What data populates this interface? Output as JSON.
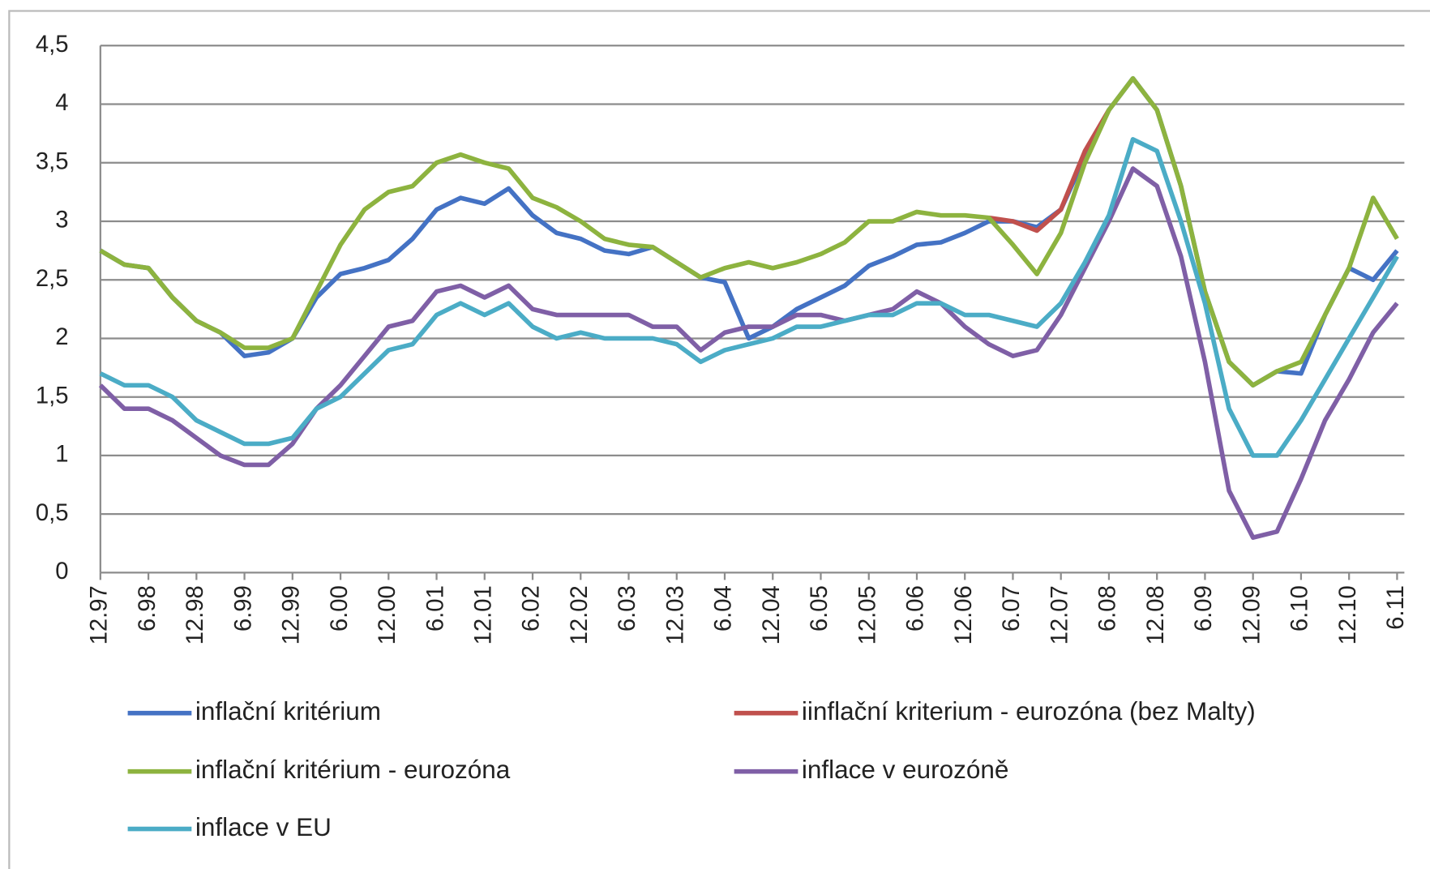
{
  "chart_data": {
    "type": "line",
    "categories": [
      "12.97",
      null,
      "6.98",
      null,
      "12.98",
      null,
      "6.99",
      null,
      "12.99",
      null,
      "6.00",
      null,
      "12.00",
      null,
      "6.01",
      null,
      "12.01",
      null,
      "6.02",
      null,
      "12.02",
      null,
      "6.03",
      null,
      "12.03",
      null,
      "6.04",
      null,
      "12.04",
      null,
      "6.05",
      null,
      "12.05",
      null,
      "6.06",
      null,
      "12.06",
      null,
      "6.07",
      null,
      "12.07",
      null,
      "6.08",
      null,
      "12.08",
      null,
      "6.09",
      null,
      "12.09",
      null,
      "6.10",
      null,
      "12.10",
      null,
      "6.11"
    ],
    "ylim": [
      0,
      4.5
    ],
    "yticks": [
      0,
      {
        "value": 0.5,
        "label": "0,5"
      },
      1,
      {
        "value": 1.5,
        "label": "1,5"
      },
      2,
      {
        "value": 2.5,
        "label": "2,5"
      },
      3,
      {
        "value": 3.5,
        "label": "3,5"
      },
      4,
      {
        "value": 4.5,
        "label": "4,5"
      }
    ],
    "grid": true,
    "series": [
      {
        "name": "inflační kritérium",
        "color": "#4472c4",
        "values": [
          2.75,
          2.63,
          2.6,
          2.35,
          2.15,
          2.05,
          1.85,
          1.88,
          2.0,
          2.35,
          2.55,
          2.6,
          2.67,
          2.85,
          3.1,
          3.2,
          3.15,
          3.28,
          3.05,
          2.9,
          2.85,
          2.75,
          2.72,
          2.78,
          2.65,
          2.52,
          2.48,
          2.0,
          2.1,
          2.25,
          2.35,
          2.45,
          2.62,
          2.7,
          2.8,
          2.82,
          2.9,
          3.0,
          3.0,
          2.95,
          3.1,
          3.55,
          3.95,
          4.22,
          3.95,
          3.3,
          2.4,
          1.8,
          1.6,
          1.72,
          1.7,
          2.2,
          2.6,
          2.5,
          2.75
        ]
      },
      {
        "name": "iinflační kriterium - eurozóna (bez Malty)",
        "color": "#c0504d",
        "values": [
          null,
          null,
          null,
          null,
          null,
          null,
          null,
          null,
          null,
          null,
          null,
          null,
          null,
          null,
          null,
          null,
          null,
          null,
          null,
          null,
          null,
          null,
          null,
          null,
          null,
          null,
          null,
          null,
          null,
          null,
          null,
          null,
          null,
          null,
          null,
          null,
          null,
          3.03,
          3.0,
          2.92,
          3.1,
          3.6,
          3.95,
          null,
          null,
          null,
          null,
          null,
          null,
          null,
          null,
          null,
          null,
          null,
          null
        ]
      },
      {
        "name": "inflační kritérium - eurozóna",
        "color": "#8db33f",
        "values": [
          2.75,
          2.63,
          2.6,
          2.35,
          2.15,
          2.05,
          1.92,
          1.92,
          2.0,
          2.4,
          2.8,
          3.1,
          3.25,
          3.3,
          3.5,
          3.57,
          3.5,
          3.45,
          3.2,
          3.12,
          3.0,
          2.85,
          2.8,
          2.78,
          2.65,
          2.52,
          2.6,
          2.65,
          2.6,
          2.65,
          2.72,
          2.82,
          3.0,
          3.0,
          3.08,
          3.05,
          3.05,
          3.03,
          2.8,
          2.55,
          2.9,
          3.5,
          3.95,
          4.22,
          3.95,
          3.3,
          2.4,
          1.8,
          1.6,
          1.72,
          1.8,
          2.2,
          2.6,
          3.2,
          2.85
        ]
      },
      {
        "name": "inflace v eurozóně",
        "color": "#7f5fa6",
        "values": [
          1.6,
          1.4,
          1.4,
          1.3,
          1.15,
          1.0,
          0.92,
          0.92,
          1.1,
          1.4,
          1.6,
          1.85,
          2.1,
          2.15,
          2.4,
          2.45,
          2.35,
          2.45,
          2.25,
          2.2,
          2.2,
          2.2,
          2.2,
          2.1,
          2.1,
          1.9,
          2.05,
          2.1,
          2.1,
          2.2,
          2.2,
          2.15,
          2.2,
          2.25,
          2.4,
          2.3,
          2.1,
          1.95,
          1.85,
          1.9,
          2.2,
          2.6,
          3.0,
          3.45,
          3.3,
          2.7,
          1.8,
          0.7,
          0.3,
          0.35,
          0.8,
          1.3,
          1.65,
          2.05,
          2.3
        ]
      },
      {
        "name": "inflace v EU",
        "color": "#4bacc6",
        "values": [
          1.7,
          1.6,
          1.6,
          1.5,
          1.3,
          1.2,
          1.1,
          1.1,
          1.15,
          1.4,
          1.5,
          1.7,
          1.9,
          1.95,
          2.2,
          2.3,
          2.2,
          2.3,
          2.1,
          2.0,
          2.05,
          2.0,
          2.0,
          2.0,
          1.95,
          1.8,
          1.9,
          1.95,
          2.0,
          2.1,
          2.1,
          2.15,
          2.2,
          2.2,
          2.3,
          2.3,
          2.2,
          2.2,
          2.15,
          2.1,
          2.3,
          2.65,
          3.05,
          3.7,
          3.6,
          3.0,
          2.3,
          1.4,
          1.0,
          1.0,
          1.3,
          1.65,
          2.0,
          2.35,
          2.7
        ]
      }
    ]
  }
}
